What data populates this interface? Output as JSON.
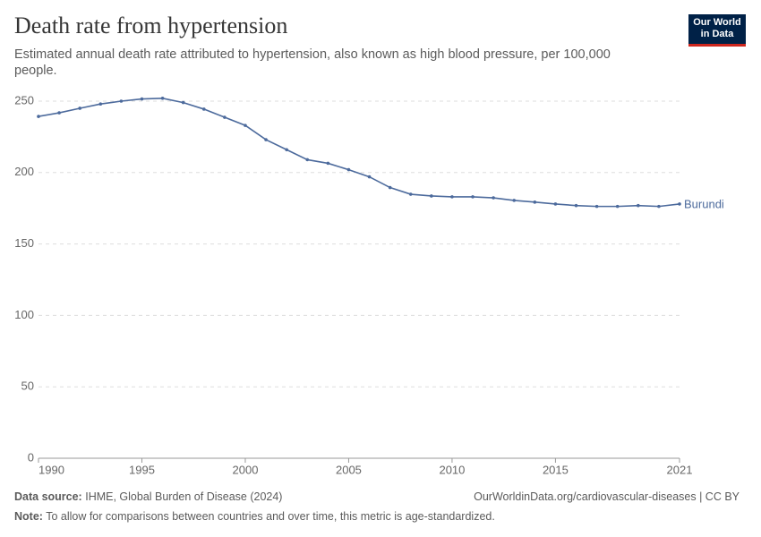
{
  "chart_data": {
    "type": "line",
    "title": "Death rate from hypertension",
    "subtitle": "Estimated annual death rate attributed to hypertension, also known as high blood pressure, per 100,000 people.",
    "logo": [
      "Our World",
      "in Data"
    ],
    "x": [
      1990,
      1991,
      1992,
      1993,
      1994,
      1995,
      1996,
      1997,
      1998,
      1999,
      2000,
      2001,
      2002,
      2003,
      2004,
      2005,
      2006,
      2007,
      2008,
      2009,
      2010,
      2011,
      2012,
      2013,
      2014,
      2015,
      2016,
      2017,
      2018,
      2019,
      2020,
      2021
    ],
    "series": [
      {
        "name": "Burundi",
        "color": "#4c6a9c",
        "values": [
          239.3,
          241.8,
          245,
          248,
          250,
          251.5,
          252,
          249,
          244.4,
          238.7,
          233,
          223,
          216,
          209,
          206.5,
          202,
          197,
          189.5,
          184.8,
          183.6,
          183,
          183,
          182.3,
          180.5,
          179.3,
          178,
          176.9,
          176.3,
          176.3,
          176.9,
          176.3,
          178
        ]
      }
    ],
    "xlim": [
      1990,
      2021
    ],
    "xticks": [
      1990,
      1995,
      2000,
      2005,
      2010,
      2015,
      2021
    ],
    "ylim": [
      0,
      250
    ],
    "yticks": [
      0,
      50,
      100,
      150,
      200,
      250
    ],
    "grid": true,
    "source_label": "Data source:",
    "source": "IHME, Global Burden of Disease (2024)",
    "url": "OurWorldinData.org/cardiovascular-diseases | CC BY",
    "note_label": "Note:",
    "note": "To allow for comparisons between countries and over time, this metric is age-standardized."
  }
}
